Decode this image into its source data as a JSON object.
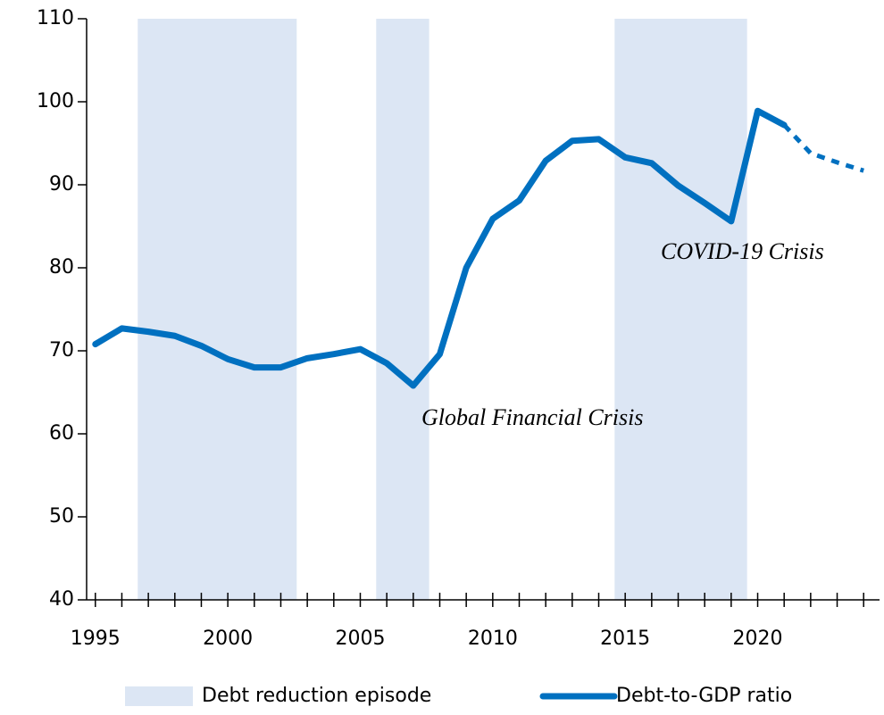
{
  "chart_data": {
    "type": "line",
    "x": [
      1995,
      1996,
      1997,
      1998,
      1999,
      2000,
      2001,
      2002,
      2003,
      2004,
      2005,
      2006,
      2007,
      2008,
      2009,
      2010,
      2011,
      2012,
      2013,
      2014,
      2015,
      2016,
      2017,
      2018,
      2019,
      2020,
      2021,
      2022,
      2023,
      2024
    ],
    "series": [
      {
        "name": "Debt-to-GDP ratio",
        "color": "#0070c0",
        "values": [
          70.8,
          72.7,
          72.3,
          71.8,
          70.6,
          69.0,
          68.0,
          68.0,
          69.1,
          69.6,
          70.2,
          68.5,
          65.8,
          69.6,
          80.0,
          85.9,
          88.1,
          92.9,
          95.3,
          95.5,
          93.3,
          92.6,
          89.9,
          87.8,
          85.6,
          98.9,
          97.2,
          93.8,
          92.7,
          91.7
        ]
      }
    ],
    "dashed_from": 2021,
    "bands": {
      "name": "Debt reduction episode",
      "color": "#dce6f4",
      "ranges": [
        [
          1996.6,
          2002.6
        ],
        [
          2005.6,
          2007.6
        ],
        [
          2014.6,
          2019.6
        ]
      ]
    },
    "annotations": [
      "Global Financial Crisis",
      "COVID-19 Crisis"
    ],
    "xlim": [
      1994.67,
      2024.6
    ],
    "xticks": [
      1995,
      2000,
      2005,
      2010,
      2015,
      2020
    ],
    "xminorticks": [
      1996,
      1997,
      1998,
      1999,
      2001,
      2002,
      2003,
      2004,
      2006,
      2007,
      2008,
      2009,
      2011,
      2012,
      2013,
      2014,
      2016,
      2017,
      2018,
      2019,
      2021,
      2022,
      2023,
      2024
    ],
    "ylim": [
      40,
      110
    ],
    "yticks": [
      40,
      50,
      60,
      70,
      80,
      90,
      100,
      110
    ],
    "legend": "bottom"
  }
}
